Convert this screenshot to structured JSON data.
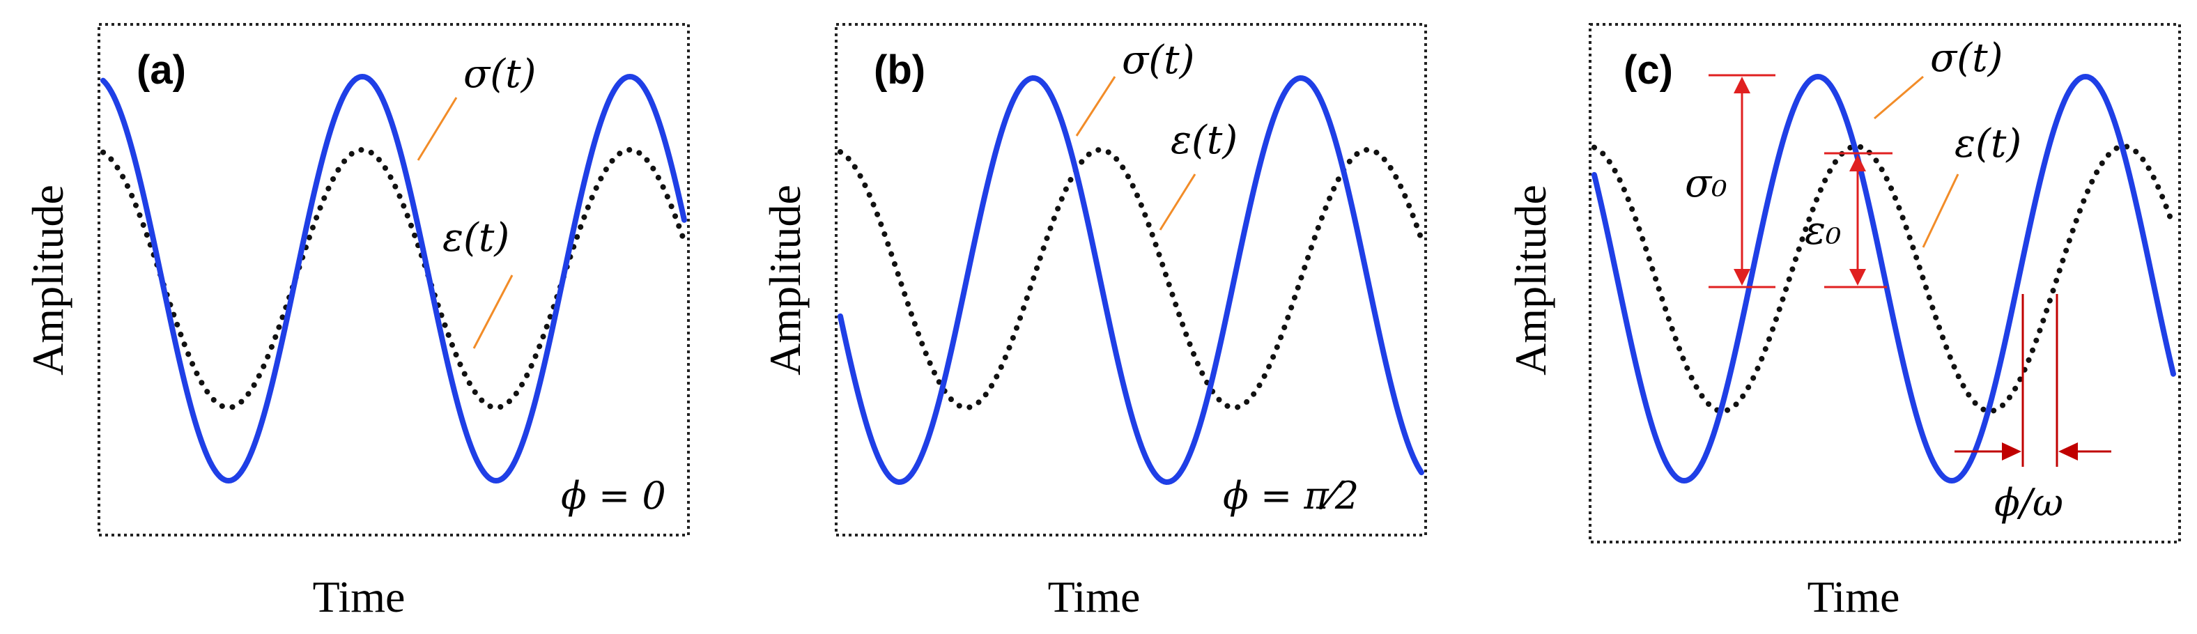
{
  "panels": [
    {
      "id": "a",
      "label": "(a)",
      "xlabel": "Time",
      "ylabel": "Amplitude",
      "stress_label": "σ(t)",
      "strain_label": "ε(t)",
      "phase_label": "ϕ = 0",
      "phase_lag_rad": 0
    },
    {
      "id": "b",
      "label": "(b)",
      "xlabel": "Time",
      "ylabel": "Amplitude",
      "stress_label": "σ(t)",
      "strain_label": "ε(t)",
      "phase_label": "ϕ = π⁄2",
      "phase_lag_rad": 1.5708
    },
    {
      "id": "c",
      "label": "(c)",
      "xlabel": "Time",
      "ylabel": "Amplitude",
      "stress_label": "σ(t)",
      "strain_label": "ε(t)",
      "stress_amplitude_label": "σ₀",
      "strain_amplitude_label": "ε₀",
      "phase_label": "ϕ/ω",
      "phase_lag_rad": 0.9
    }
  ],
  "colors": {
    "stress": "#1f3fe6",
    "strain": "#111111",
    "leader": "#f28c28",
    "dimension": "#e02020"
  }
}
